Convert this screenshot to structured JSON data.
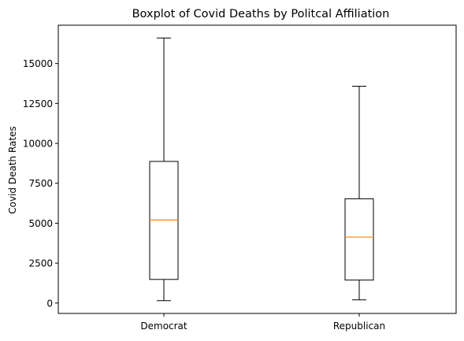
{
  "chart_data": {
    "type": "boxplot",
    "title": "Boxplot of Covid Deaths by Politcal Affiliation",
    "xlabel": "",
    "ylabel": "Covid Death Rates",
    "categories": [
      "Democrat",
      "Republican"
    ],
    "boxes": [
      {
        "category": "Democrat",
        "whisker_low": 150,
        "q1": 1480,
        "median": 5200,
        "q3": 8870,
        "whisker_high": 16600
      },
      {
        "category": "Republican",
        "whisker_low": 200,
        "q1": 1440,
        "median": 4130,
        "q3": 6530,
        "whisker_high": 13580
      }
    ],
    "ylim": [
      -650,
      17400
    ],
    "yticks": [
      0,
      2500,
      5000,
      7500,
      10000,
      12500,
      15000
    ],
    "ytick_labels": [
      "0",
      "2500",
      "5000",
      "7500",
      "10000",
      "12500",
      "15000"
    ],
    "grid": false,
    "legend": "none",
    "colors": {
      "box": "#000000",
      "median": "#ff7f0e"
    }
  }
}
